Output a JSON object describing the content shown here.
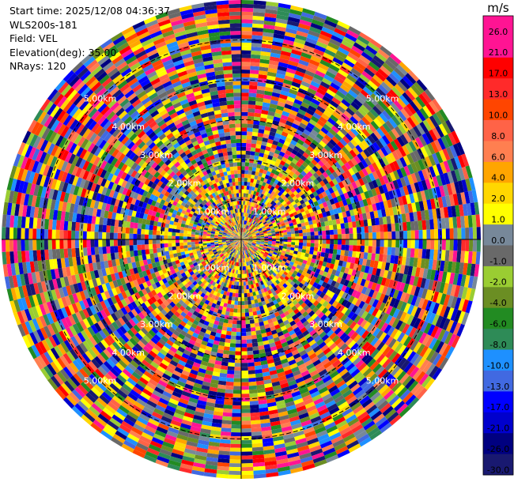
{
  "header": {
    "start_time": "Start time: 2025/12/08 04:36:37",
    "instrument": "WLS200s-181",
    "field": "Field: VEL",
    "elevation": "Elevation(deg): 35.00",
    "nrays": "NRays: 120"
  },
  "chart_data": {
    "type": "heatmap",
    "projection": "polar-ppi",
    "field": "VEL",
    "units": "m/s",
    "n_rays": 120,
    "n_range_gates": 62,
    "max_range_km": 6.0,
    "range_ring_labels_km": [
      "1.00km",
      "2.00km",
      "3.00km",
      "4.00km",
      "5.00km"
    ],
    "colorbar": {
      "label": "m/s",
      "tick_labels": [
        "26.0",
        "21.0",
        "17.0",
        "13.0",
        "10.0",
        "8.0",
        "6.0",
        "4.0",
        "2.0",
        "1.0",
        "0.0",
        "-1.0",
        "-2.0",
        "-4.0",
        "-6.0",
        "-8.0",
        "-10.0",
        "-13.0",
        "-17.0",
        "-21.0",
        "-26.0",
        "-30.0"
      ],
      "colors": [
        "#FF1493",
        "#FF0000",
        "#FF2A2A",
        "#FF4500",
        "#FF6347",
        "#FF7F50",
        "#FFA500",
        "#FFD700",
        "#FFFF00",
        "#778899",
        "#696969",
        "#9ACD32",
        "#6B8E23",
        "#228B22",
        "#2E8B57",
        "#1E90FF",
        "#4169E1",
        "#0000FF",
        "#0000CD",
        "#000080",
        "#191970"
      ],
      "top_color": "#FF1493"
    },
    "grid": true
  }
}
